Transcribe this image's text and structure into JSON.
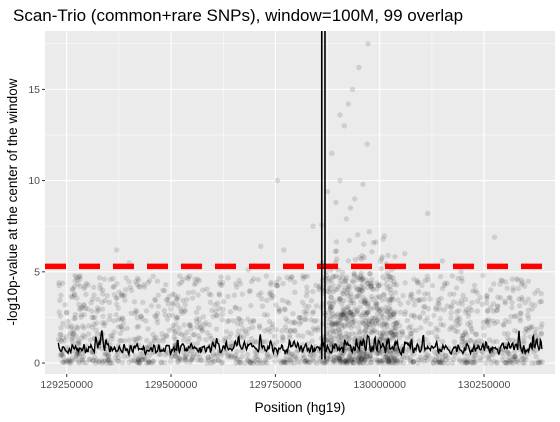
{
  "chart_data": {
    "type": "scatter",
    "title": "Scan-Trio (common+rare SNPs), window=100M, 99 overlap",
    "xlabel": "Position (hg19)",
    "ylabel": "-log10p-value at the center of the window",
    "xlim": [
      129198000,
      130420000
    ],
    "ylim": [
      -0.6,
      18.2
    ],
    "x_ticks": [
      129250000,
      129500000,
      129750000,
      130000000,
      130250000
    ],
    "x_tick_labels": [
      "129250000",
      "129500000",
      "129750000",
      "130000000",
      "130250000"
    ],
    "y_ticks": [
      0,
      5,
      10,
      15
    ],
    "y_tick_labels": [
      "0",
      "5",
      "10",
      "15"
    ],
    "grid": true,
    "legend": "none",
    "threshold_line": {
      "y": 5.3,
      "color": "#ff0000",
      "style": "dashed"
    },
    "peak_line": {
      "x": 129865000,
      "color": "#000000"
    },
    "points_color": "#000000",
    "points_opacity": 0.12,
    "line_color": "#000000",
    "panel_background": "#ebebeb",
    "gridline_color": "#ffffff",
    "notable_points": [
      {
        "x": 129755000,
        "y": 10.0
      },
      {
        "x": 129972000,
        "y": 17.5
      },
      {
        "x": 129950000,
        "y": 16.2
      },
      {
        "x": 129935000,
        "y": 15.0
      },
      {
        "x": 129925000,
        "y": 14.2
      },
      {
        "x": 129905000,
        "y": 13.6
      },
      {
        "x": 129915000,
        "y": 13.0
      },
      {
        "x": 129970000,
        "y": 12.0
      },
      {
        "x": 129885000,
        "y": 11.5
      },
      {
        "x": 129905000,
        "y": 10.0
      },
      {
        "x": 130115000,
        "y": 8.2
      },
      {
        "x": 130275000,
        "y": 6.9
      },
      {
        "x": 129840000,
        "y": 7.5
      },
      {
        "x": 129715000,
        "y": 6.4
      },
      {
        "x": 129770000,
        "y": 6.2
      },
      {
        "x": 129370000,
        "y": 6.2
      },
      {
        "x": 129400000,
        "y": 5.5
      },
      {
        "x": 129685000,
        "y": 5.1
      },
      {
        "x": 129960000,
        "y": 9.8
      },
      {
        "x": 129940000,
        "y": 9.0
      },
      {
        "x": 129930000,
        "y": 8.5
      },
      {
        "x": 129920000,
        "y": 7.9
      },
      {
        "x": 129975000,
        "y": 7.2
      },
      {
        "x": 129985000,
        "y": 6.6
      },
      {
        "x": 130020000,
        "y": 5.9
      },
      {
        "x": 130060000,
        "y": 6.0
      },
      {
        "x": 130150000,
        "y": 5.6
      },
      {
        "x": 130195000,
        "y": 5.0
      },
      {
        "x": 129895000,
        "y": 8.8
      },
      {
        "x": 129875000,
        "y": 9.4
      }
    ],
    "bulk_points": {
      "count": 2000,
      "x_range": [
        129230000,
        130390000
      ],
      "typical_y_range": [
        0,
        5
      ],
      "dense_region": [
        129860000,
        130040000
      ]
    },
    "line_series": {
      "name": "",
      "x_range": [
        129230000,
        130390000
      ],
      "typical_y_range": [
        0,
        2.7
      ],
      "peak": {
        "x": 129865000,
        "y": 18.2
      }
    }
  }
}
